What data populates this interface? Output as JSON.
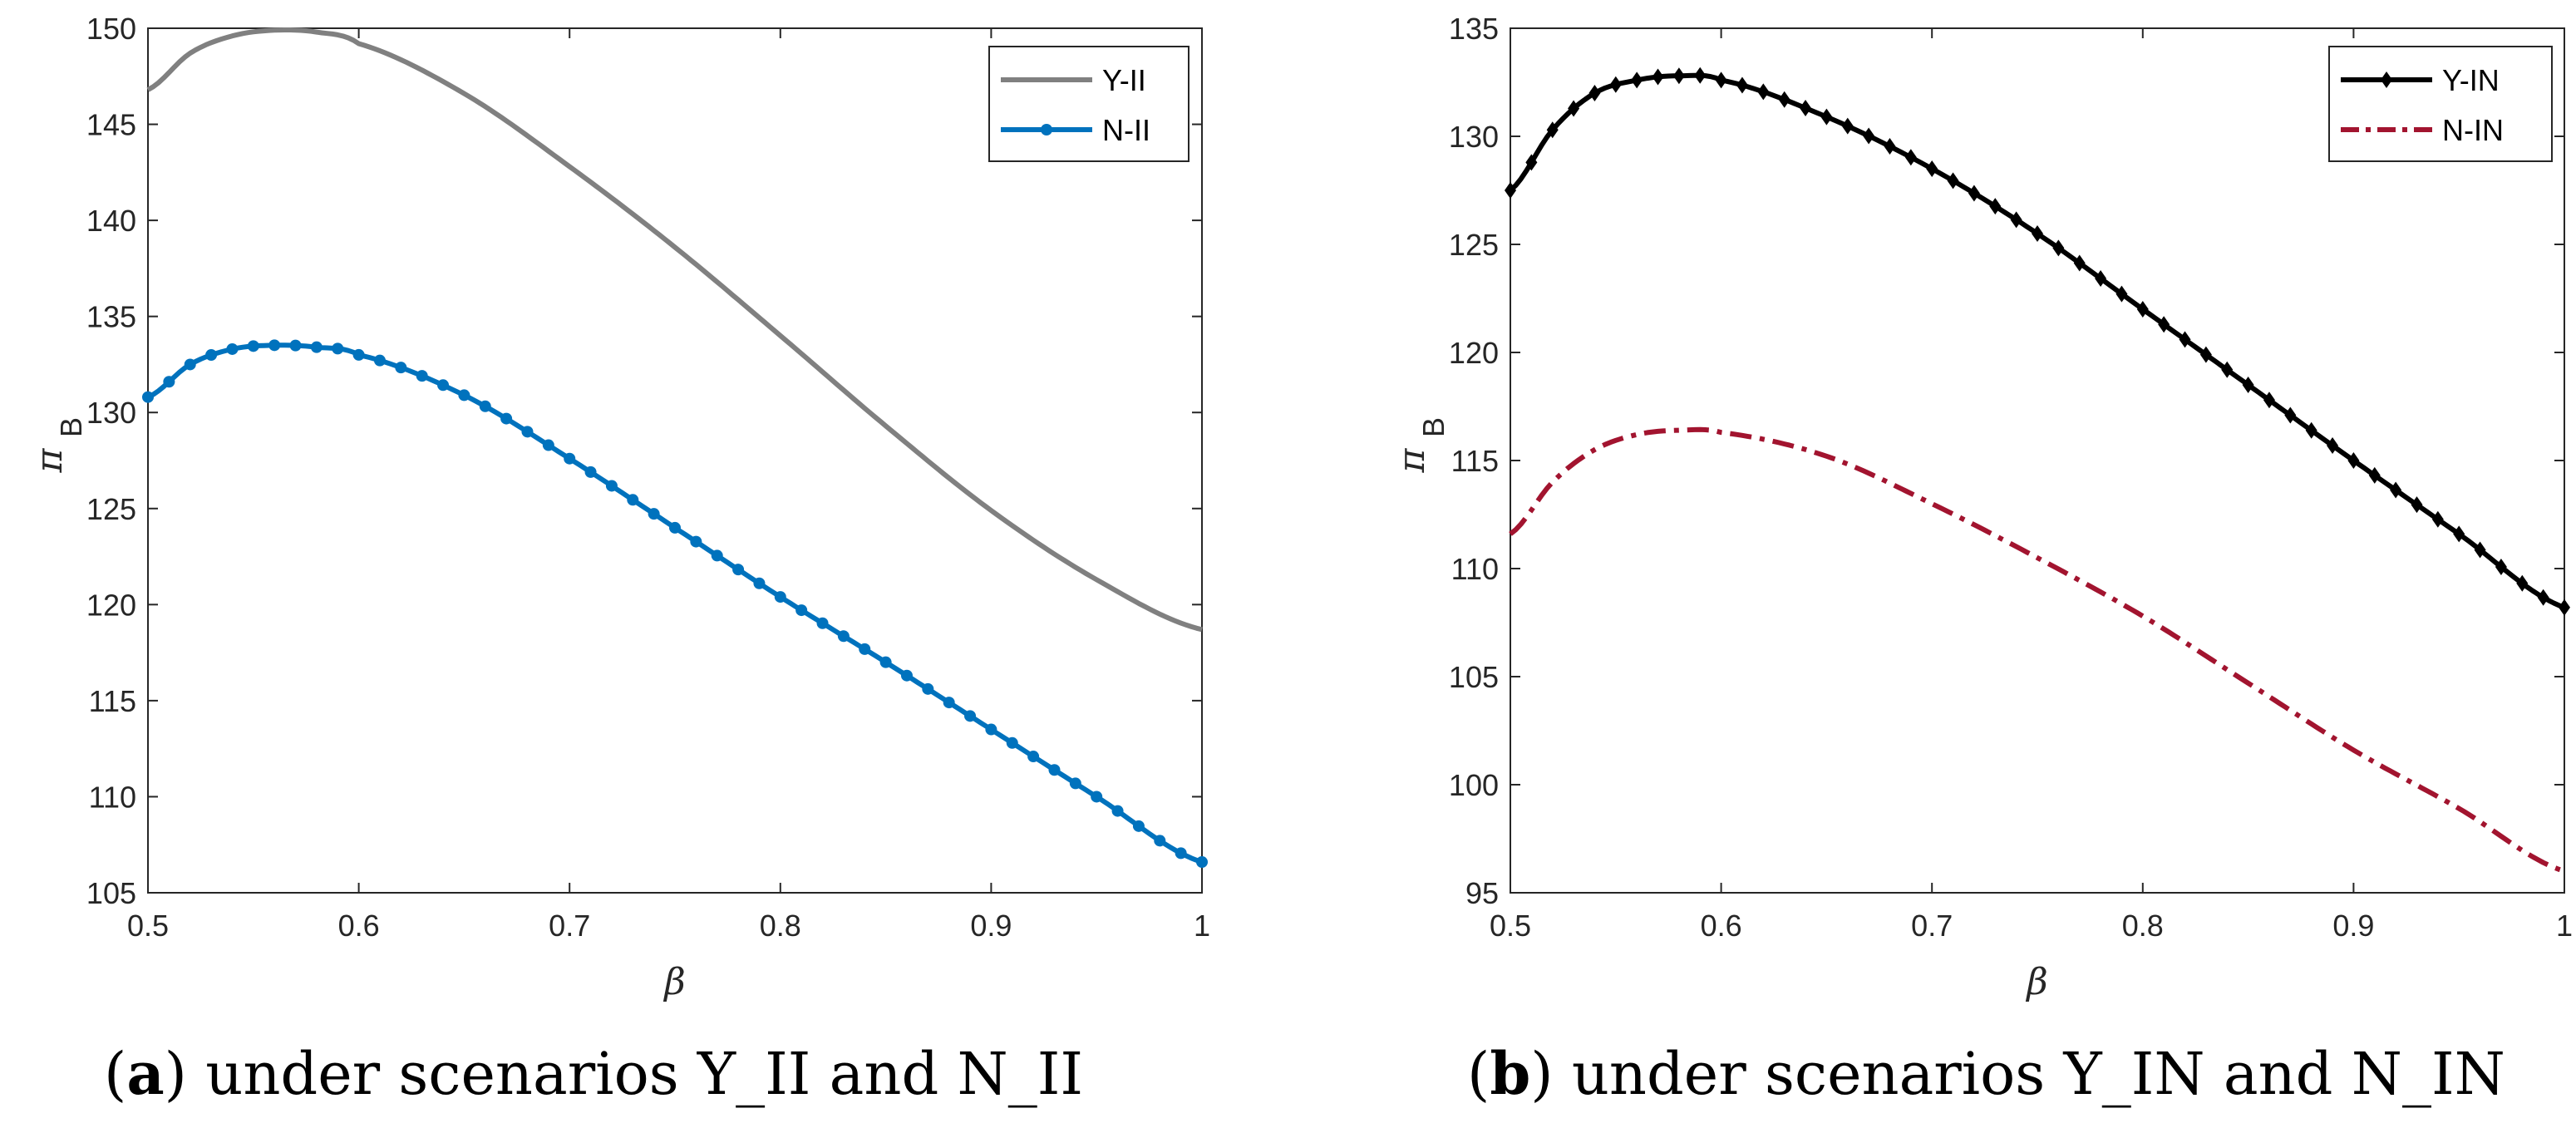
{
  "captions": [
    {
      "letter": "a",
      "text": "under scenarios Y_II and N_II"
    },
    {
      "letter": "b",
      "text": "under scenarios Y_IN and N_IN"
    }
  ],
  "chart_data": [
    {
      "type": "line",
      "title": "",
      "xlabel": "β",
      "ylabel": "π",
      "ylabel_sub": "B",
      "xlim": [
        0.5,
        1.0
      ],
      "ylim": [
        105,
        150
      ],
      "xticks": [
        0.5,
        0.6,
        0.7,
        0.8,
        0.9,
        1.0
      ],
      "xticklabels": [
        "0.5",
        "0.6",
        "0.7",
        "0.8",
        "0.9",
        "1"
      ],
      "yticks": [
        105,
        110,
        115,
        120,
        125,
        130,
        135,
        140,
        145,
        150
      ],
      "yticklabels": [
        "105",
        "110",
        "115",
        "120",
        "125",
        "130",
        "135",
        "140",
        "145",
        "150"
      ],
      "grid": false,
      "legend_position": "top-right",
      "series": [
        {
          "name": "Y-II",
          "color": "#808080",
          "marker": "none",
          "style": "solid",
          "x": [
            0.5,
            0.52,
            0.54,
            0.56,
            0.58,
            0.6,
            0.65,
            0.7,
            0.75,
            0.8,
            0.85,
            0.9,
            0.95,
            1.0
          ],
          "y": [
            146.8,
            148.7,
            149.6,
            149.9,
            149.8,
            149.2,
            146.6,
            142.8,
            138.6,
            134.0,
            129.3,
            124.9,
            121.3,
            118.7
          ]
        },
        {
          "name": "N-II",
          "color": "#0072BD",
          "marker": "dot",
          "style": "solid",
          "x": [
            0.5,
            0.52,
            0.54,
            0.56,
            0.58,
            0.6,
            0.65,
            0.7,
            0.75,
            0.8,
            0.85,
            0.9,
            0.95,
            1.0
          ],
          "y": [
            130.8,
            132.5,
            133.3,
            133.5,
            133.4,
            133.0,
            130.9,
            127.6,
            124.0,
            120.4,
            117.0,
            113.5,
            110.0,
            106.6
          ]
        }
      ]
    },
    {
      "type": "line",
      "title": "",
      "xlabel": "β",
      "ylabel": "π",
      "ylabel_sub": "B",
      "xlim": [
        0.5,
        1.0
      ],
      "ylim": [
        95,
        135
      ],
      "xticks": [
        0.5,
        0.6,
        0.7,
        0.8,
        0.9,
        1.0
      ],
      "xticklabels": [
        "0.5",
        "0.6",
        "0.7",
        "0.8",
        "0.9",
        "1"
      ],
      "yticks": [
        95,
        100,
        105,
        110,
        115,
        120,
        125,
        130,
        135
      ],
      "yticklabels": [
        "95",
        "100",
        "105",
        "110",
        "115",
        "120",
        "125",
        "130",
        "135"
      ],
      "grid": false,
      "legend_position": "top-right",
      "series": [
        {
          "name": "Y-IN",
          "color": "#000000",
          "marker": "diamond",
          "style": "solid",
          "x": [
            0.5,
            0.52,
            0.54,
            0.56,
            0.58,
            0.6,
            0.65,
            0.7,
            0.75,
            0.8,
            0.85,
            0.9,
            0.95,
            1.0
          ],
          "y": [
            127.5,
            130.3,
            132.0,
            132.6,
            132.8,
            132.6,
            130.9,
            128.5,
            125.5,
            122.0,
            118.5,
            115.0,
            111.6,
            108.2
          ]
        },
        {
          "name": "N-IN",
          "color": "#A2142F",
          "marker": "none",
          "style": "dashdot",
          "x": [
            0.5,
            0.52,
            0.54,
            0.56,
            0.58,
            0.6,
            0.65,
            0.7,
            0.75,
            0.8,
            0.85,
            0.9,
            0.95,
            1.0
          ],
          "y": [
            111.6,
            114.0,
            115.5,
            116.2,
            116.4,
            116.3,
            115.2,
            113.0,
            110.5,
            107.8,
            104.7,
            101.6,
            98.9,
            96.0
          ]
        }
      ]
    }
  ]
}
